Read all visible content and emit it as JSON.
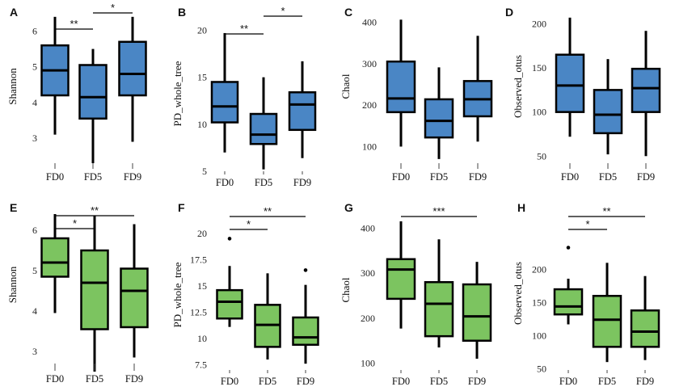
{
  "chart_data": [
    {
      "panel": "A",
      "type": "box",
      "ylabel": "Shannon",
      "categories": [
        "FD0",
        "FD5",
        "FD9"
      ],
      "color": "#4a86c5",
      "ylim": [
        2.3,
        6.6
      ],
      "yticks": [
        3,
        4,
        5,
        6
      ],
      "boxes": [
        {
          "min": 3.1,
          "q1": 4.2,
          "median": 4.9,
          "q3": 5.6,
          "max": 6.4
        },
        {
          "min": 2.3,
          "q1": 3.55,
          "median": 4.15,
          "q3": 5.05,
          "max": 5.5
        },
        {
          "min": 2.9,
          "q1": 4.2,
          "median": 4.8,
          "q3": 5.7,
          "max": 6.4
        }
      ],
      "outliers": [
        [],
        [],
        []
      ],
      "significance": [
        {
          "from": 0,
          "to": 1,
          "label": "**"
        },
        {
          "from": 1,
          "to": 2,
          "label": "*"
        }
      ]
    },
    {
      "panel": "B",
      "type": "box",
      "ylabel": "PD_whole_tree",
      "categories": [
        "FD0",
        "FD5",
        "FD9"
      ],
      "color": "#4a86c5",
      "ylim": [
        5,
        21.5
      ],
      "yticks": [
        5,
        10,
        15,
        20
      ],
      "boxes": [
        {
          "min": 7,
          "q1": 10.2,
          "median": 11.9,
          "q3": 14.5,
          "max": 19.7
        },
        {
          "min": 5.2,
          "q1": 7.9,
          "median": 8.9,
          "q3": 11.1,
          "max": 15
        },
        {
          "min": 6.4,
          "q1": 9.4,
          "median": 12.1,
          "q3": 13.4,
          "max": 16.7
        }
      ],
      "outliers": [
        [],
        [],
        []
      ],
      "significance": [
        {
          "from": 0,
          "to": 1,
          "label": "**"
        },
        {
          "from": 1,
          "to": 2,
          "label": "*"
        }
      ]
    },
    {
      "panel": "C",
      "type": "box",
      "ylabel": "Chaol",
      "categories": [
        "FD0",
        "FD5",
        "FD9"
      ],
      "color": "#4a86c5",
      "ylim": [
        60,
        430
      ],
      "yticks": [
        100,
        200,
        300,
        400
      ],
      "boxes": [
        {
          "min": 100,
          "q1": 183,
          "median": 216,
          "q3": 305,
          "max": 406
        },
        {
          "min": 70,
          "q1": 122,
          "median": 162,
          "q3": 214,
          "max": 291
        },
        {
          "min": 112,
          "q1": 173,
          "median": 214,
          "q3": 258,
          "max": 367
        }
      ],
      "outliers": [
        [],
        [],
        []
      ],
      "significance": []
    },
    {
      "panel": "D",
      "type": "box",
      "ylabel": "Observed_otus",
      "categories": [
        "FD0",
        "FD5",
        "FD9"
      ],
      "color": "#4a86c5",
      "ylim": [
        42,
        216
      ],
      "yticks": [
        50,
        100,
        150,
        200
      ],
      "boxes": [
        {
          "min": 72,
          "q1": 100,
          "median": 130,
          "q3": 165,
          "max": 207
        },
        {
          "min": 52,
          "q1": 76,
          "median": 97,
          "q3": 125,
          "max": 160
        },
        {
          "min": 50,
          "q1": 100,
          "median": 127,
          "q3": 149,
          "max": 192
        }
      ],
      "outliers": [
        [],
        [],
        []
      ],
      "significance": []
    },
    {
      "panel": "E",
      "type": "box",
      "ylabel": "Shannon",
      "categories": [
        "FD0",
        "FD5",
        "FD9"
      ],
      "color": "#7cc460",
      "ylim": [
        2.7,
        6.6
      ],
      "yticks": [
        3,
        4,
        5,
        6
      ],
      "boxes": [
        {
          "min": 3.95,
          "q1": 4.85,
          "median": 5.2,
          "q3": 5.8,
          "max": 6.4
        },
        {
          "min": 2.5,
          "q1": 3.55,
          "median": 4.7,
          "q3": 5.5,
          "max": 6.35
        },
        {
          "min": 2.85,
          "q1": 3.6,
          "median": 4.5,
          "q3": 5.05,
          "max": 6.15
        }
      ],
      "outliers": [
        [],
        [],
        []
      ],
      "significance": [
        {
          "from": 0,
          "to": 1,
          "label": "*"
        },
        {
          "from": 0,
          "to": 2,
          "label": "**"
        }
      ]
    },
    {
      "panel": "F",
      "type": "box",
      "ylabel": "PD_whole_tree",
      "categories": [
        "FD0",
        "FD5",
        "FD9"
      ],
      "color": "#7cc460",
      "ylim": [
        7,
        21.3
      ],
      "yticks": [
        7.5,
        10.0,
        12.5,
        15.0,
        17.5,
        20.0
      ],
      "boxes": [
        {
          "min": 11.1,
          "q1": 11.9,
          "median": 13.5,
          "q3": 14.6,
          "max": 16.9
        },
        {
          "min": 8,
          "q1": 9.2,
          "median": 11.3,
          "q3": 13.2,
          "max": 16.2
        },
        {
          "min": 7.6,
          "q1": 9.4,
          "median": 10.1,
          "q3": 12,
          "max": 15.1
        }
      ],
      "outliers": [
        [
          19.5
        ],
        [],
        [
          16.5
        ]
      ],
      "significance": [
        {
          "from": 0,
          "to": 1,
          "label": "*"
        },
        {
          "from": 0,
          "to": 2,
          "label": "**"
        }
      ]
    },
    {
      "panel": "G",
      "type": "box",
      "ylabel": "Chaol",
      "categories": [
        "FD0",
        "FD5",
        "FD9"
      ],
      "color": "#7cc460",
      "ylim": [
        85,
        440
      ],
      "yticks": [
        100,
        200,
        300,
        400
      ],
      "boxes": [
        {
          "min": 177,
          "q1": 243,
          "median": 308,
          "q3": 331,
          "max": 415
        },
        {
          "min": 135,
          "q1": 160,
          "median": 232,
          "q3": 280,
          "max": 375
        },
        {
          "min": 110,
          "q1": 150,
          "median": 204,
          "q3": 275,
          "max": 325
        }
      ],
      "outliers": [
        [],
        [],
        []
      ],
      "significance": [
        {
          "from": 0,
          "to": 2,
          "label": "***"
        }
      ]
    },
    {
      "panel": "H",
      "type": "box",
      "ylabel": "Observed_otus",
      "categories": [
        "FD0",
        "FD5",
        "FD9"
      ],
      "color": "#7cc460",
      "ylim": [
        48,
        280
      ],
      "yticks": [
        50,
        100,
        150,
        200
      ],
      "boxes": [
        {
          "min": 117,
          "q1": 132,
          "median": 144,
          "q3": 170,
          "max": 186
        },
        {
          "min": 60,
          "q1": 83,
          "median": 124,
          "q3": 160,
          "max": 210
        },
        {
          "min": 63,
          "q1": 83,
          "median": 106,
          "q3": 138,
          "max": 190
        }
      ],
      "outliers": [
        [
          233
        ],
        [],
        []
      ],
      "significance": [
        {
          "from": 0,
          "to": 1,
          "label": "*"
        },
        {
          "from": 0,
          "to": 2,
          "label": "**"
        }
      ]
    }
  ]
}
